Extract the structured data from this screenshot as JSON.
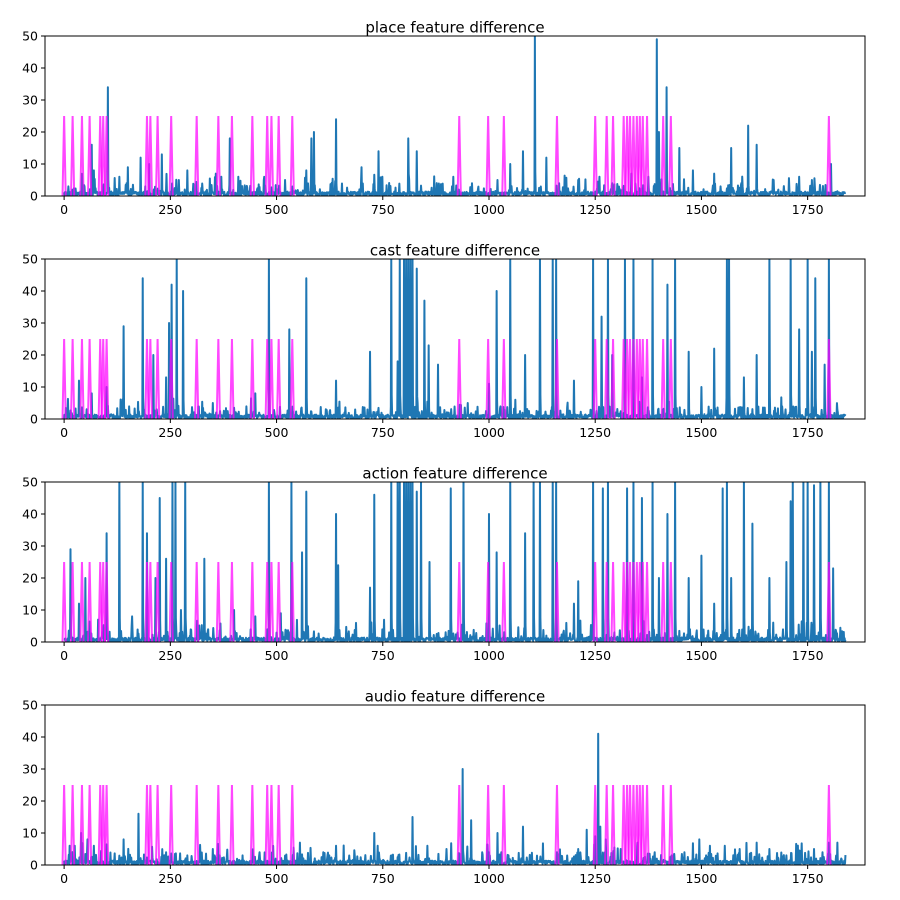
{
  "colors": {
    "series_line": "#1f77b4",
    "marker_line": "#ff00ff",
    "marker_opacity": 0.72,
    "axes": "#000000"
  },
  "chart_data": [
    {
      "type": "line",
      "title": "place feature difference",
      "xlabel": "",
      "ylabel": "",
      "xlim": [
        -45,
        1885
      ],
      "ylim": [
        0,
        50
      ],
      "xticks": [
        0,
        250,
        500,
        750,
        1000,
        1250,
        1500,
        1750
      ],
      "yticks": [
        0,
        10,
        20,
        30,
        40,
        50
      ],
      "grid": false,
      "markers": {
        "x": [
          0,
          20,
          42,
          60,
          85,
          92,
          100,
          195,
          203,
          220,
          252,
          312,
          363,
          395,
          443,
          478,
          488,
          505,
          537,
          930,
          998,
          1035,
          1160,
          1250,
          1277,
          1292,
          1317,
          1325,
          1332,
          1340,
          1348,
          1355,
          1362,
          1372,
          1410,
          1428,
          1800
        ],
        "height": 25
      },
      "n_points": 1840,
      "peaks": [
        [
          10,
          3
        ],
        [
          48,
          3
        ],
        [
          65,
          16
        ],
        [
          70,
          8
        ],
        [
          103,
          34
        ],
        [
          130,
          6
        ],
        [
          150,
          9
        ],
        [
          180,
          12
        ],
        [
          200,
          10
        ],
        [
          230,
          13
        ],
        [
          270,
          5
        ],
        [
          290,
          8
        ],
        [
          370,
          6
        ],
        [
          390,
          18
        ],
        [
          410,
          6
        ],
        [
          470,
          5
        ],
        [
          520,
          5
        ],
        [
          570,
          8
        ],
        [
          582,
          18
        ],
        [
          588,
          20
        ],
        [
          640,
          24
        ],
        [
          700,
          9
        ],
        [
          740,
          14
        ],
        [
          810,
          18
        ],
        [
          830,
          14
        ],
        [
          913,
          3
        ],
        [
          960,
          4
        ],
        [
          1020,
          5
        ],
        [
          1050,
          10
        ],
        [
          1080,
          14
        ],
        [
          1108,
          50
        ],
        [
          1135,
          12
        ],
        [
          1165,
          4
        ],
        [
          1210,
          5
        ],
        [
          1260,
          6
        ],
        [
          1290,
          4
        ],
        [
          1335,
          7
        ],
        [
          1375,
          6
        ],
        [
          1395,
          49
        ],
        [
          1400,
          20
        ],
        [
          1418,
          34
        ],
        [
          1448,
          15
        ],
        [
          1480,
          8
        ],
        [
          1530,
          7
        ],
        [
          1570,
          15
        ],
        [
          1610,
          22
        ],
        [
          1630,
          16
        ],
        [
          1670,
          5
        ],
        [
          1730,
          6
        ],
        [
          1760,
          5
        ],
        [
          1805,
          10
        ]
      ]
    },
    {
      "type": "line",
      "title": "cast feature difference",
      "xlabel": "",
      "ylabel": "",
      "xlim": [
        -45,
        1885
      ],
      "ylim": [
        0,
        50
      ],
      "xticks": [
        0,
        250,
        500,
        750,
        1000,
        1250,
        1500,
        1750
      ],
      "yticks": [
        0,
        10,
        20,
        30,
        40,
        50
      ],
      "grid": false,
      "markers": {
        "x": [
          0,
          20,
          42,
          60,
          85,
          92,
          100,
          195,
          203,
          220,
          252,
          312,
          363,
          395,
          443,
          478,
          488,
          505,
          537,
          930,
          998,
          1035,
          1160,
          1250,
          1277,
          1292,
          1317,
          1325,
          1332,
          1340,
          1348,
          1355,
          1362,
          1372,
          1410,
          1428,
          1800
        ],
        "height": 25
      },
      "n_points": 1840,
      "peaks": [
        [
          35,
          12
        ],
        [
          65,
          8
        ],
        [
          100,
          10
        ],
        [
          140,
          29
        ],
        [
          185,
          44
        ],
        [
          210,
          20
        ],
        [
          240,
          13
        ],
        [
          247,
          30
        ],
        [
          253,
          42
        ],
        [
          265,
          50
        ],
        [
          280,
          40
        ],
        [
          350,
          5
        ],
        [
          450,
          8
        ],
        [
          482,
          50
        ],
        [
          530,
          28
        ],
        [
          570,
          44
        ],
        [
          640,
          12
        ],
        [
          720,
          21
        ],
        [
          770,
          50
        ],
        [
          785,
          18
        ],
        [
          790,
          50
        ],
        [
          800,
          50
        ],
        [
          805,
          50
        ],
        [
          810,
          50
        ],
        [
          815,
          50
        ],
        [
          820,
          50
        ],
        [
          830,
          47
        ],
        [
          848,
          37
        ],
        [
          858,
          23
        ],
        [
          880,
          17
        ],
        [
          950,
          5
        ],
        [
          1000,
          11
        ],
        [
          1018,
          40
        ],
        [
          1050,
          50
        ],
        [
          1085,
          20
        ],
        [
          1120,
          50
        ],
        [
          1150,
          50
        ],
        [
          1158,
          50
        ],
        [
          1200,
          12
        ],
        [
          1245,
          50
        ],
        [
          1265,
          32
        ],
        [
          1280,
          50
        ],
        [
          1290,
          20
        ],
        [
          1320,
          50
        ],
        [
          1340,
          50
        ],
        [
          1360,
          13
        ],
        [
          1385,
          50
        ],
        [
          1420,
          42
        ],
        [
          1438,
          50
        ],
        [
          1470,
          21
        ],
        [
          1500,
          10
        ],
        [
          1530,
          22
        ],
        [
          1560,
          50
        ],
        [
          1565,
          50
        ],
        [
          1600,
          13
        ],
        [
          1630,
          20
        ],
        [
          1660,
          50
        ],
        [
          1710,
          50
        ],
        [
          1730,
          28
        ],
        [
          1750,
          50
        ],
        [
          1760,
          21
        ],
        [
          1768,
          44
        ],
        [
          1790,
          17
        ],
        [
          1800,
          50
        ]
      ]
    },
    {
      "type": "line",
      "title": "action feature difference",
      "xlabel": "",
      "ylabel": "",
      "xlim": [
        -45,
        1885
      ],
      "ylim": [
        0,
        50
      ],
      "xticks": [
        0,
        250,
        500,
        750,
        1000,
        1250,
        1500,
        1750
      ],
      "yticks": [
        0,
        10,
        20,
        30,
        40,
        50
      ],
      "grid": false,
      "markers": {
        "x": [
          0,
          20,
          42,
          60,
          85,
          92,
          100,
          195,
          203,
          220,
          252,
          312,
          363,
          395,
          443,
          478,
          488,
          505,
          537,
          930,
          998,
          1035,
          1160,
          1250,
          1277,
          1292,
          1317,
          1325,
          1332,
          1340,
          1348,
          1355,
          1362,
          1372,
          1410,
          1428,
          1800
        ],
        "height": 25
      },
      "n_points": 1840,
      "peaks": [
        [
          15,
          29
        ],
        [
          35,
          12
        ],
        [
          50,
          20
        ],
        [
          80,
          7
        ],
        [
          100,
          34
        ],
        [
          130,
          50
        ],
        [
          160,
          8
        ],
        [
          185,
          50
        ],
        [
          195,
          34
        ],
        [
          215,
          20
        ],
        [
          225,
          45
        ],
        [
          240,
          26
        ],
        [
          255,
          50
        ],
        [
          262,
          50
        ],
        [
          275,
          10
        ],
        [
          285,
          50
        ],
        [
          330,
          26
        ],
        [
          400,
          10
        ],
        [
          450,
          8
        ],
        [
          482,
          50
        ],
        [
          510,
          9
        ],
        [
          535,
          50
        ],
        [
          560,
          28
        ],
        [
          570,
          47
        ],
        [
          640,
          40
        ],
        [
          645,
          24
        ],
        [
          720,
          17
        ],
        [
          730,
          46
        ],
        [
          770,
          50
        ],
        [
          785,
          50
        ],
        [
          790,
          50
        ],
        [
          800,
          50
        ],
        [
          805,
          50
        ],
        [
          810,
          50
        ],
        [
          815,
          50
        ],
        [
          820,
          50
        ],
        [
          830,
          47
        ],
        [
          840,
          50
        ],
        [
          860,
          25
        ],
        [
          910,
          48
        ],
        [
          940,
          50
        ],
        [
          1000,
          40
        ],
        [
          1018,
          28
        ],
        [
          1050,
          50
        ],
        [
          1085,
          34
        ],
        [
          1105,
          50
        ],
        [
          1120,
          50
        ],
        [
          1150,
          50
        ],
        [
          1158,
          50
        ],
        [
          1200,
          12
        ],
        [
          1210,
          19
        ],
        [
          1245,
          50
        ],
        [
          1268,
          48
        ],
        [
          1280,
          50
        ],
        [
          1325,
          48
        ],
        [
          1340,
          50
        ],
        [
          1360,
          45
        ],
        [
          1385,
          50
        ],
        [
          1400,
          20
        ],
        [
          1420,
          40
        ],
        [
          1438,
          50
        ],
        [
          1470,
          20
        ],
        [
          1500,
          27
        ],
        [
          1530,
          12
        ],
        [
          1550,
          48
        ],
        [
          1560,
          50
        ],
        [
          1570,
          20
        ],
        [
          1600,
          50
        ],
        [
          1620,
          37
        ],
        [
          1660,
          20
        ],
        [
          1700,
          25
        ],
        [
          1710,
          44
        ],
        [
          1715,
          50
        ],
        [
          1740,
          50
        ],
        [
          1750,
          50
        ],
        [
          1765,
          49
        ],
        [
          1780,
          50
        ],
        [
          1800,
          50
        ],
        [
          1810,
          23
        ]
      ]
    },
    {
      "type": "line",
      "title": "audio feature difference",
      "xlabel": "",
      "ylabel": "",
      "xlim": [
        -45,
        1885
      ],
      "ylim": [
        0,
        50
      ],
      "xticks": [
        0,
        250,
        500,
        750,
        1000,
        1250,
        1500,
        1750
      ],
      "yticks": [
        0,
        10,
        20,
        30,
        40,
        50
      ],
      "grid": false,
      "markers": {
        "x": [
          0,
          20,
          42,
          60,
          85,
          92,
          100,
          195,
          203,
          220,
          252,
          312,
          363,
          395,
          443,
          478,
          488,
          505,
          537,
          930,
          998,
          1035,
          1160,
          1250,
          1277,
          1292,
          1317,
          1325,
          1332,
          1340,
          1348,
          1355,
          1362,
          1372,
          1410,
          1428,
          1800
        ],
        "height": 25
      },
      "n_points": 1840,
      "peaks": [
        [
          25,
          6
        ],
        [
          40,
          10
        ],
        [
          55,
          8
        ],
        [
          70,
          6
        ],
        [
          140,
          8
        ],
        [
          175,
          16
        ],
        [
          240,
          4
        ],
        [
          290,
          3
        ],
        [
          350,
          5
        ],
        [
          420,
          3
        ],
        [
          460,
          4
        ],
        [
          555,
          7
        ],
        [
          610,
          4
        ],
        [
          640,
          6
        ],
        [
          730,
          10
        ],
        [
          770,
          3
        ],
        [
          820,
          15
        ],
        [
          855,
          6
        ],
        [
          900,
          5
        ],
        [
          938,
          30
        ],
        [
          958,
          14
        ],
        [
          1000,
          4
        ],
        [
          1020,
          10
        ],
        [
          1080,
          12
        ],
        [
          1160,
          4
        ],
        [
          1210,
          5
        ],
        [
          1230,
          11
        ],
        [
          1250,
          9
        ],
        [
          1257,
          41
        ],
        [
          1262,
          12
        ],
        [
          1275,
          8
        ],
        [
          1310,
          5
        ],
        [
          1350,
          7
        ],
        [
          1390,
          4
        ],
        [
          1430,
          3
        ],
        [
          1460,
          4
        ],
        [
          1495,
          8
        ],
        [
          1520,
          6
        ],
        [
          1555,
          6
        ],
        [
          1590,
          5
        ],
        [
          1630,
          7
        ],
        [
          1660,
          5
        ],
        [
          1700,
          3
        ],
        [
          1730,
          4
        ],
        [
          1765,
          5
        ],
        [
          1800,
          7
        ],
        [
          1820,
          7
        ]
      ]
    }
  ]
}
